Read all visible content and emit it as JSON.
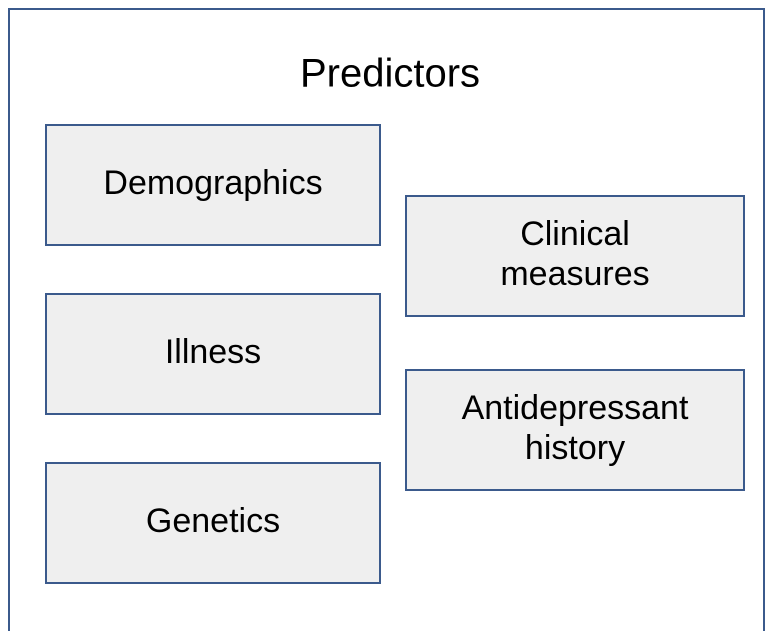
{
  "title": "Predictors",
  "nodes": [
    {
      "label": [
        "Demographics"
      ]
    },
    {
      "label": [
        "Illness"
      ]
    },
    {
      "label": [
        "Genetics"
      ]
    },
    {
      "label": [
        "Clinical",
        "measures"
      ]
    },
    {
      "label": [
        "Antidepressant",
        "history"
      ]
    }
  ]
}
